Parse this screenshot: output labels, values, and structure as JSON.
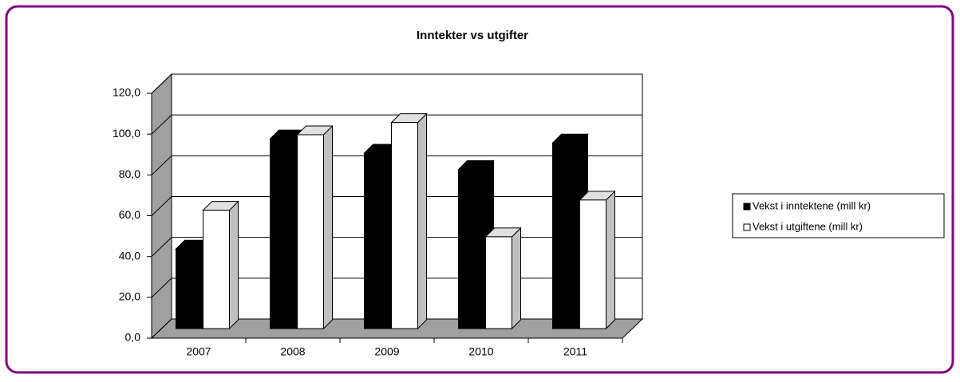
{
  "chart_data": {
    "type": "bar3d",
    "title": "Inntekter vs utgifter",
    "categories": [
      "2007",
      "2008",
      "2009",
      "2010",
      "2011"
    ],
    "series": [
      {
        "name": "Vekst i inntektene (mill kr)",
        "color": "#000000",
        "values": [
          39,
          93,
          86,
          78,
          91
        ]
      },
      {
        "name": "Vekst i utgiftene (mill kr)",
        "color": "#ffffff",
        "values": [
          58,
          95,
          101,
          45,
          63
        ]
      }
    ],
    "ylim": [
      0,
      120
    ],
    "yticks": [
      {
        "value": 0,
        "label": "0,0"
      },
      {
        "value": 20,
        "label": "20,0"
      },
      {
        "value": 40,
        "label": "40,0"
      },
      {
        "value": 60,
        "label": "60,0"
      },
      {
        "value": 80,
        "label": "80,0"
      },
      {
        "value": 100,
        "label": "100,0"
      },
      {
        "value": 120,
        "label": "120,0"
      }
    ],
    "grid": true,
    "legend": "right"
  }
}
